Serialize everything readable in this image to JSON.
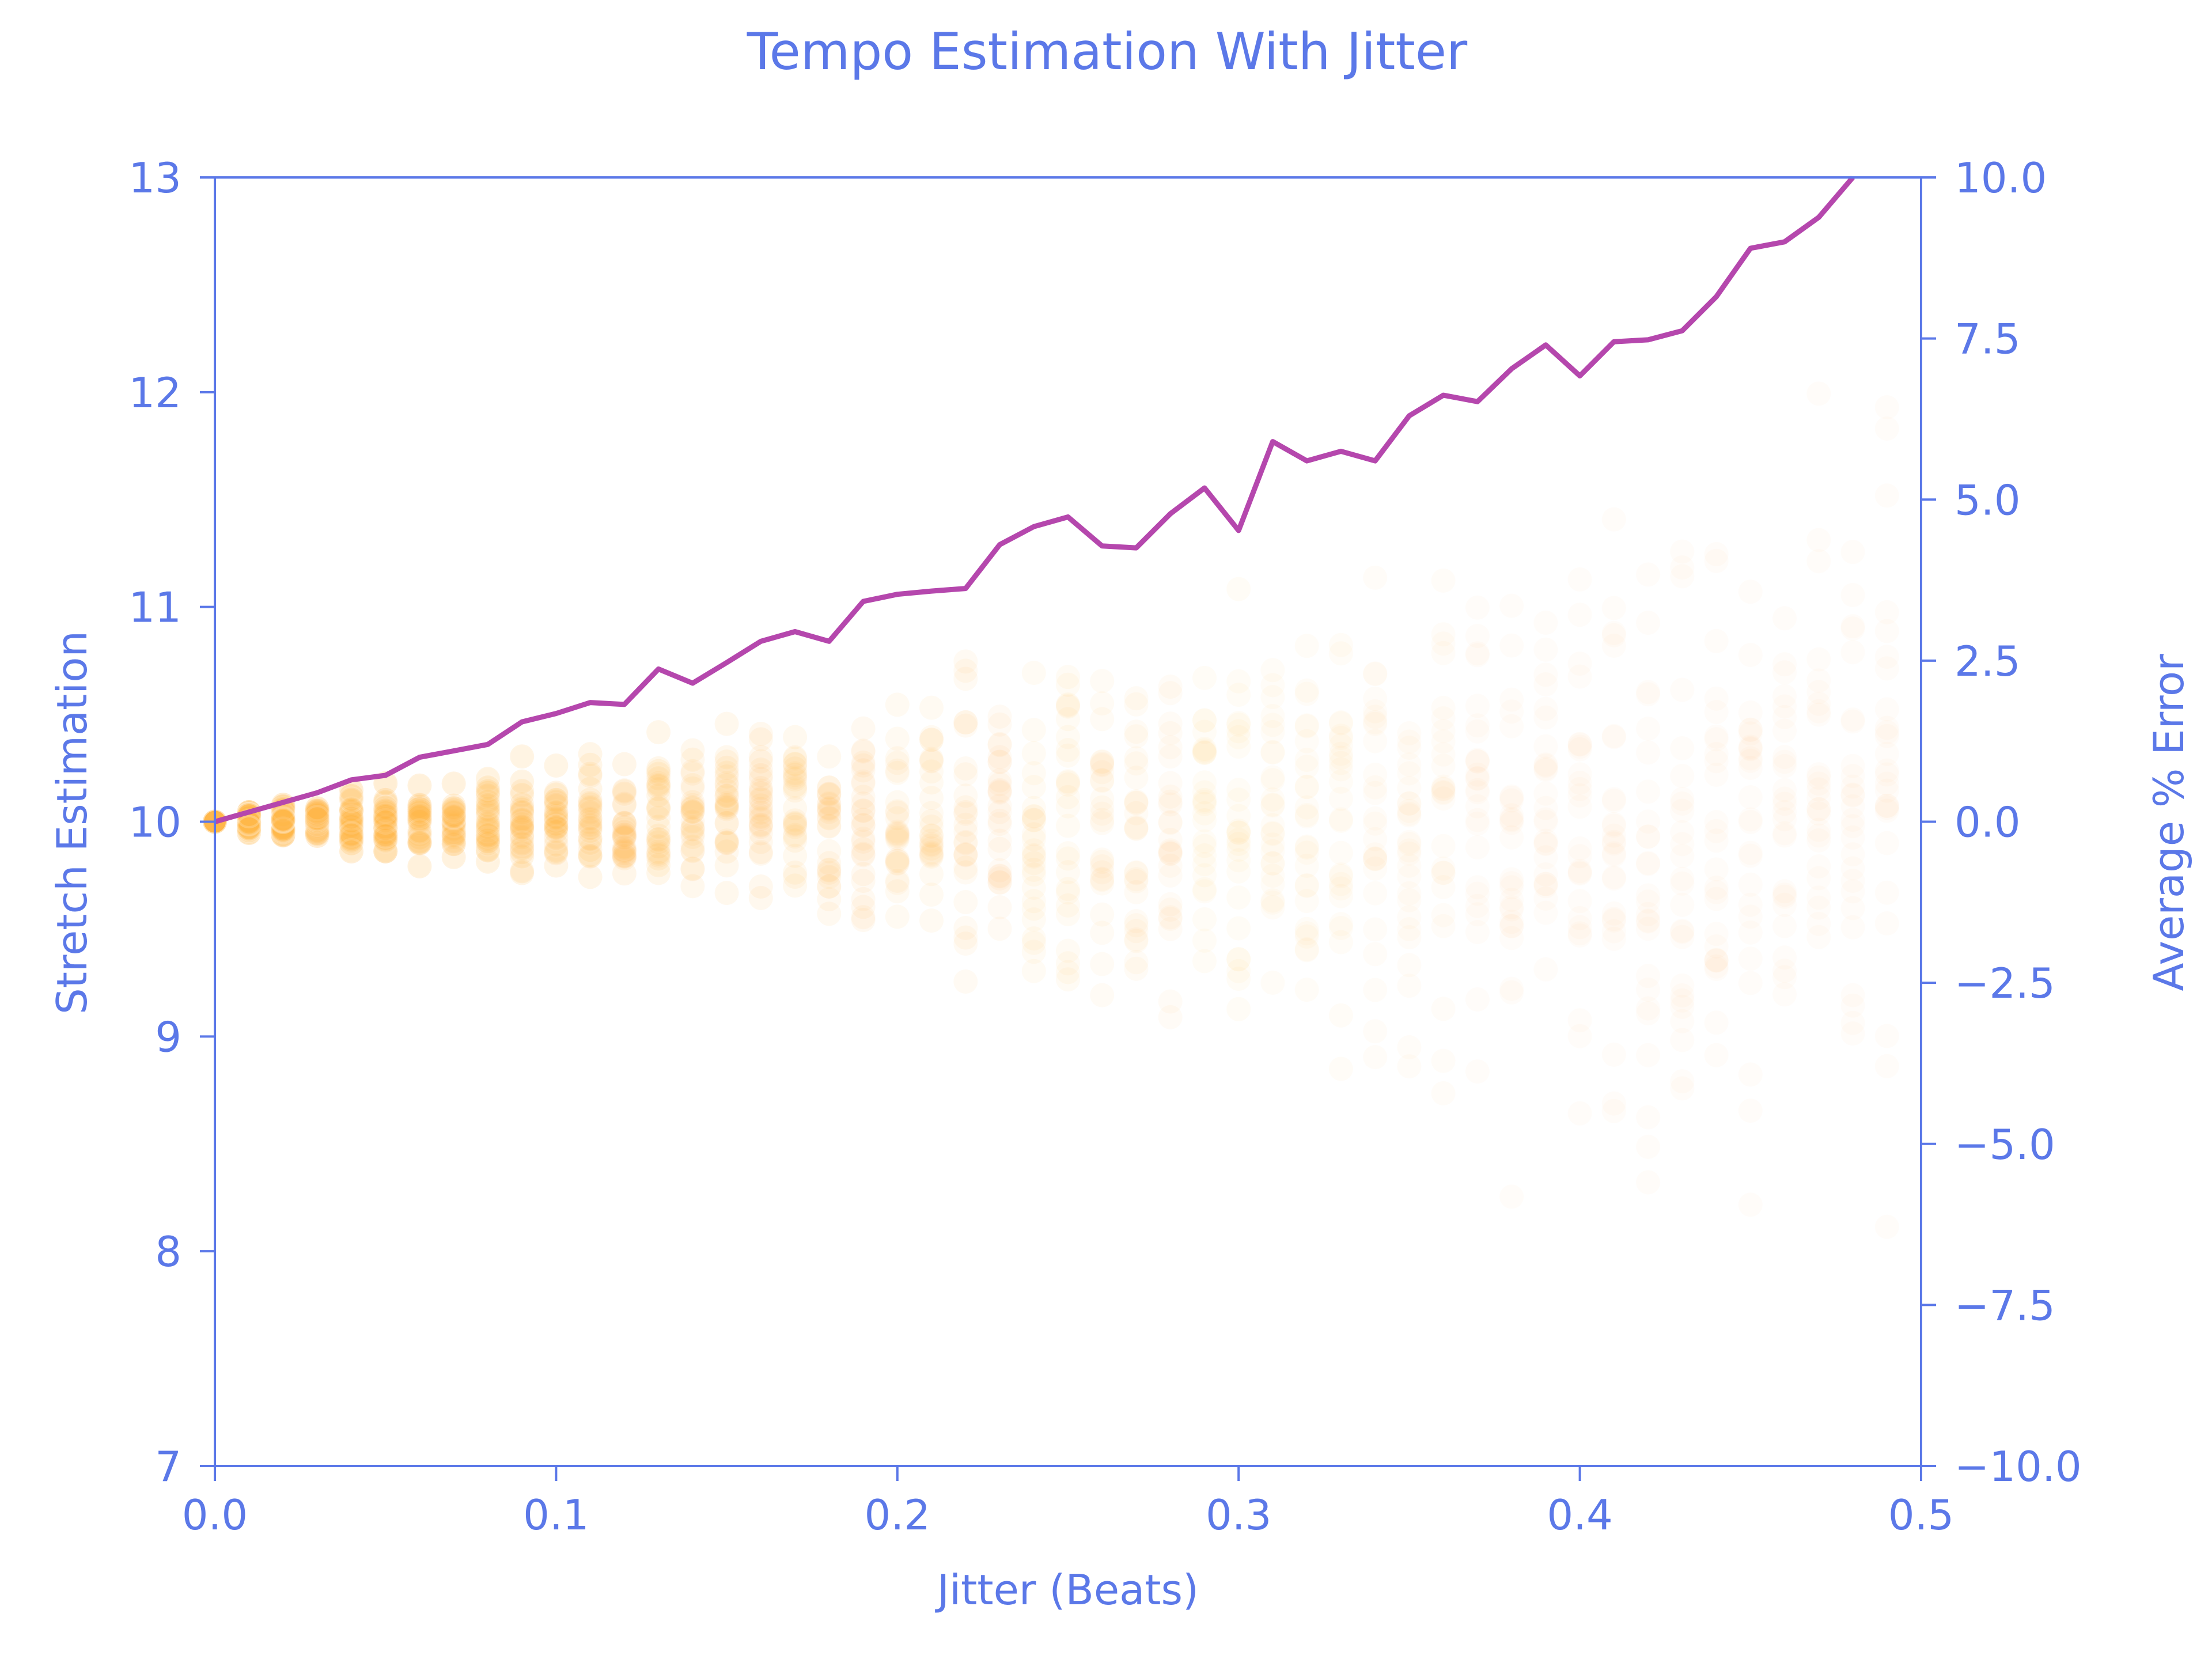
{
  "chart_data": {
    "type": "scatter",
    "title": "Tempo Estimation With Jitter",
    "xlabel": "Jitter (Beats)",
    "ylabel": "Stretch Estimation",
    "y2label": "Average % Error",
    "xlim": [
      0,
      0.5
    ],
    "ylim": [
      7,
      13
    ],
    "y2lim": [
      -10,
      10
    ],
    "x_ticks": [
      "0.0",
      "0.1",
      "0.2",
      "0.3",
      "0.4",
      "0.5"
    ],
    "y_ticks": [
      "7",
      "8",
      "9",
      "10",
      "11",
      "12",
      "13"
    ],
    "y2_ticks": [
      "−10.0",
      "−7.5",
      "−5.0",
      "−2.5",
      "0.0",
      "2.5",
      "5.0",
      "7.5",
      "10.0"
    ],
    "grid": false,
    "legend": "none",
    "colors": {
      "axis": "#5b78e8",
      "scatter": "#ffb74a",
      "line": "#b547ad",
      "background": "#ffffff"
    },
    "scatter_series": {
      "x": [
        0.0,
        0.01,
        0.02,
        0.03,
        0.04,
        0.05,
        0.06,
        0.07,
        0.08,
        0.09,
        0.1,
        0.11,
        0.12,
        0.13,
        0.14,
        0.15,
        0.16,
        0.17,
        0.18,
        0.19,
        0.2,
        0.21,
        0.22,
        0.23,
        0.24,
        0.25,
        0.26,
        0.27,
        0.28,
        0.29,
        0.3,
        0.31,
        0.32,
        0.33,
        0.34,
        0.35,
        0.36,
        0.37,
        0.38,
        0.39,
        0.4,
        0.41,
        0.42,
        0.43,
        0.44,
        0.45,
        0.46,
        0.47,
        0.48,
        0.49
      ],
      "y_center": 10.0,
      "y_spread": [
        0.0,
        0.08,
        0.1,
        0.14,
        0.18,
        0.2,
        0.25,
        0.28,
        0.3,
        0.34,
        0.38,
        0.42,
        0.45,
        0.5,
        0.55,
        0.58,
        0.62,
        0.66,
        0.7,
        0.75,
        0.8,
        0.85,
        0.9,
        0.95,
        1.0,
        1.05,
        1.1,
        1.15,
        1.2,
        1.25,
        1.3,
        1.35,
        1.4,
        1.45,
        1.5,
        1.55,
        1.6,
        1.65,
        1.7,
        1.75,
        1.8,
        1.85,
        1.9,
        1.95,
        2.0,
        2.05,
        2.1,
        2.15,
        2.2,
        2.25
      ]
    },
    "error_series": {
      "x": [
        0.0,
        0.01,
        0.02,
        0.03,
        0.04,
        0.05,
        0.06,
        0.07,
        0.08,
        0.09,
        0.1,
        0.11,
        0.12,
        0.13,
        0.14,
        0.15,
        0.16,
        0.17,
        0.18,
        0.19,
        0.2,
        0.21,
        0.22,
        0.23,
        0.24,
        0.25,
        0.26,
        0.27,
        0.28,
        0.29,
        0.3,
        0.31,
        0.32,
        0.33,
        0.34,
        0.35,
        0.36,
        0.37,
        0.38,
        0.39,
        0.4,
        0.41,
        0.42,
        0.43,
        0.44,
        0.45,
        0.46,
        0.47,
        0.48
      ],
      "values": [
        0.0,
        0.15,
        0.3,
        0.45,
        0.65,
        0.72,
        1.0,
        1.1,
        1.2,
        1.55,
        1.68,
        1.85,
        1.82,
        2.37,
        2.15,
        2.47,
        2.8,
        2.95,
        2.8,
        3.42,
        3.53,
        3.58,
        3.62,
        4.3,
        4.58,
        4.73,
        4.28,
        4.25,
        4.78,
        5.18,
        4.52,
        5.9,
        5.6,
        5.75,
        5.6,
        6.3,
        6.62,
        6.52,
        7.03,
        7.4,
        6.92,
        7.45,
        7.48,
        7.62,
        8.15,
        8.9,
        9.0,
        9.38,
        10.05
      ]
    }
  }
}
